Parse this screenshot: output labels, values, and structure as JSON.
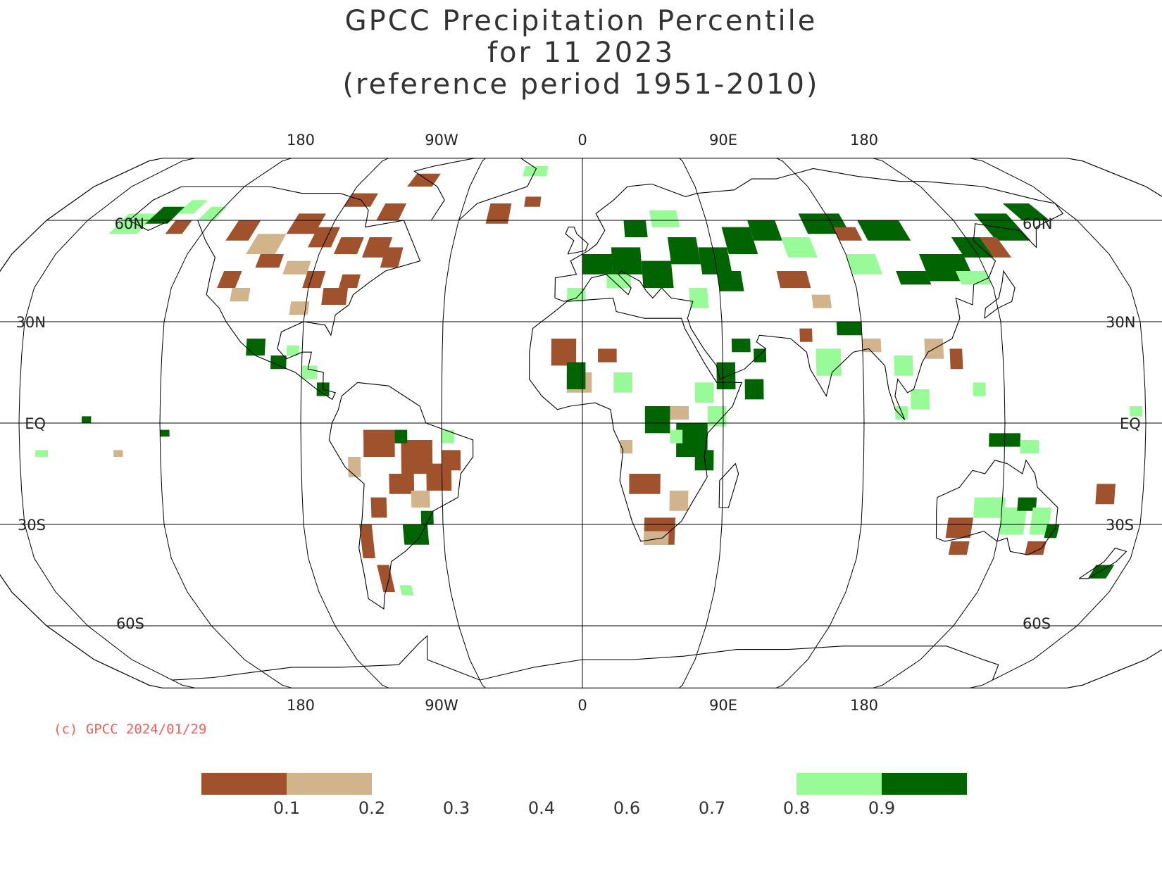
{
  "title": {
    "line1": "GPCC Precipitation Percentile",
    "line2": "for 11 2023",
    "line3": "(reference period 1951-2010)"
  },
  "map": {
    "projection": "Robinson",
    "top_lon_labels": [
      "180",
      "90W",
      "0",
      "90E",
      "180"
    ],
    "bottom_lon_labels": [
      "180",
      "90W",
      "0",
      "90E",
      "180"
    ],
    "left_lat_labels": [
      "60N",
      "30N",
      "EQ",
      "30S",
      "60S"
    ],
    "right_lat_labels": [
      "60N",
      "30N",
      "EQ",
      "30S",
      "60S"
    ]
  },
  "copyright": "(c) GPCC 2024/01/29",
  "colors": {
    "very_dry": "#a0522d",
    "dry": "#d2b48c",
    "wet": "#98fb98",
    "very_wet": "#006400",
    "copyright_text": "#ff5a5a"
  },
  "legend": {
    "tick_labels": [
      "0.1",
      "0.2",
      "0.3",
      "0.4",
      "0.6",
      "0.7",
      "0.8",
      "0.9"
    ],
    "bins": [
      {
        "from": "0",
        "to": "0.1",
        "color": "#a0522d"
      },
      {
        "from": "0.1",
        "to": "0.2",
        "color": "#d2b48c"
      },
      {
        "from": "0.8",
        "to": "0.9",
        "color": "#98fb98"
      },
      {
        "from": "0.9",
        "to": "1",
        "color": "#006400"
      }
    ]
  }
}
